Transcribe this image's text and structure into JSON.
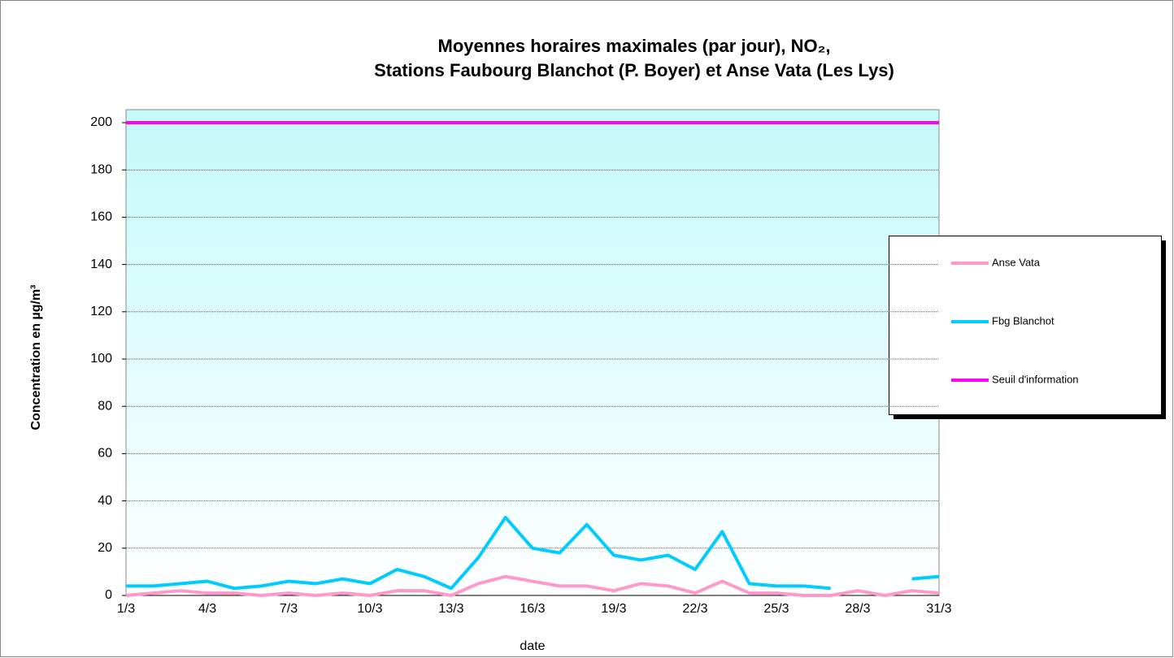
{
  "chart_data": {
    "type": "line",
    "title": [
      "Moyennes horaires maximales (par jour), NO₂,",
      "Stations Faubourg Blanchot (P. Boyer) et Anse Vata (Les Lys)"
    ],
    "x_label": "date",
    "y_label": "Concentration en µg/m³",
    "categories": [
      "1/3",
      null,
      null,
      "4/3",
      null,
      null,
      "7/3",
      null,
      null,
      "10/3",
      null,
      null,
      "13/3",
      null,
      null,
      "16/3",
      null,
      null,
      "19/3",
      null,
      null,
      "22/3",
      null,
      null,
      "25/3",
      null,
      null,
      "28/3",
      null,
      null,
      "31/3"
    ],
    "series": [
      {
        "name": "Anse Vata",
        "color": "#ff99cc",
        "values": [
          0,
          1,
          2,
          1,
          1,
          0,
          1,
          0,
          1,
          0,
          2,
          2,
          0,
          5,
          8,
          6,
          4,
          4,
          2,
          5,
          4,
          1,
          6,
          1,
          1,
          0,
          0,
          2,
          0,
          2,
          1
        ]
      },
      {
        "name": "Fbg Blanchot",
        "color": "#00ccff",
        "values": [
          4,
          4,
          5,
          6,
          3,
          4,
          6,
          5,
          7,
          5,
          11,
          8,
          3,
          16,
          33,
          20,
          18,
          30,
          17,
          15,
          17,
          11,
          27,
          5,
          4,
          4,
          3,
          null,
          null,
          7,
          8
        ]
      },
      {
        "name": "Seuil d'information",
        "color": "#ff00ff",
        "values": [
          200,
          200,
          200,
          200,
          200,
          200,
          200,
          200,
          200,
          200,
          200,
          200,
          200,
          200,
          200,
          200,
          200,
          200,
          200,
          200,
          200,
          200,
          200,
          200,
          200,
          200,
          200,
          200,
          200,
          200,
          200
        ]
      }
    ],
    "ylim": [
      0,
      200
    ],
    "yticks": [
      0,
      20,
      40,
      60,
      80,
      100,
      120,
      140,
      160,
      180,
      200
    ],
    "grid": true,
    "legend": "right"
  }
}
